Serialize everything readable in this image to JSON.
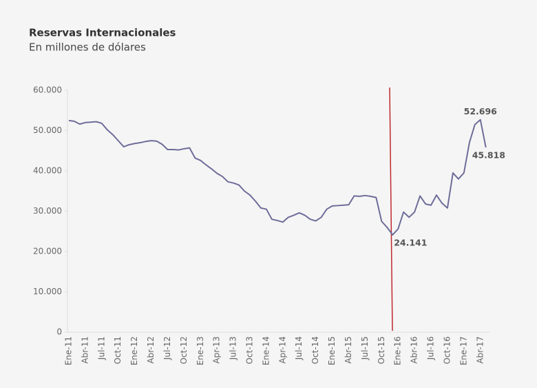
{
  "chart_data": {
    "type": "line",
    "title": "Reservas Internacionales",
    "subtitle": "En millones de dólares",
    "categories": [
      "Ene-11",
      null,
      null,
      "Abr-11",
      null,
      null,
      "Jul-11",
      null,
      null,
      "Oct-11",
      null,
      null,
      "Ene-12",
      null,
      null,
      "Abr-12",
      null,
      null,
      "Jul-12",
      null,
      null,
      "Oct-12",
      null,
      null,
      "Ene-13",
      null,
      null,
      "Apr-13",
      null,
      null,
      "Jul-13",
      null,
      null,
      "Oct-13",
      null,
      null,
      "Ene-14",
      null,
      null,
      "Apr-14",
      null,
      null,
      "Jul-14",
      null,
      null,
      "Oct-14",
      null,
      null,
      "Ene-15",
      null,
      null,
      "Abr-15",
      null,
      null,
      "Jul-15",
      null,
      null,
      "Oct-15",
      null,
      null,
      "Ene-16",
      null,
      null,
      "Abr-16",
      null,
      null,
      "Jul-16",
      null,
      null,
      "Oct-16",
      null,
      null,
      "Ene-17",
      null,
      null,
      "Abr-17",
      null
    ],
    "series": [
      {
        "name": "Reservas",
        "color": "#6e6c99",
        "values": [
          52500,
          52300,
          51600,
          52000,
          52100,
          52200,
          51800,
          50200,
          49000,
          47500,
          46000,
          46500,
          46800,
          47000,
          47300,
          47500,
          47400,
          46600,
          45300,
          45300,
          45200,
          45500,
          45700,
          43200,
          42600,
          41500,
          40500,
          39400,
          38600,
          37300,
          37000,
          36500,
          35000,
          34000,
          32500,
          30800,
          30500,
          28000,
          27700,
          27300,
          28500,
          29000,
          29600,
          29000,
          28000,
          27600,
          28500,
          30500,
          31300,
          31400,
          31500,
          31600,
          33800,
          33700,
          33900,
          33700,
          33400,
          27500,
          26000,
          24141,
          25600,
          29800,
          28500,
          29800,
          33800,
          31800,
          31500,
          34000,
          32000,
          30800,
          39500,
          38000,
          39500,
          47000,
          51500,
          52696,
          45818
        ],
        "value_labels": [
          null,
          null,
          null,
          null,
          null,
          null,
          null,
          null,
          null,
          null,
          null,
          null,
          null,
          null,
          null,
          null,
          null,
          null,
          null,
          null,
          null,
          null,
          null,
          null,
          null,
          null,
          null,
          null,
          null,
          null,
          null,
          null,
          null,
          null,
          null,
          null,
          null,
          null,
          null,
          null,
          null,
          null,
          null,
          null,
          null,
          null,
          null,
          null,
          null,
          null,
          null,
          null,
          null,
          null,
          null,
          null,
          null,
          null,
          null,
          "24.141",
          null,
          null,
          null,
          null,
          null,
          null,
          null,
          null,
          null,
          null,
          null,
          null,
          null,
          null,
          null,
          "52.696",
          "45.818"
        ]
      }
    ],
    "ylim": [
      0,
      60000
    ],
    "yticks": [
      0,
      {
        "value": 10000,
        "label": "10.000"
      },
      {
        "value": 20000,
        "label": "20.000"
      },
      {
        "value": 30000,
        "label": "30.000"
      },
      {
        "value": 40000,
        "label": "40.000"
      },
      {
        "value": 50000,
        "label": "50.000"
      },
      {
        "value": 60000,
        "label": "60.000"
      }
    ]
  }
}
